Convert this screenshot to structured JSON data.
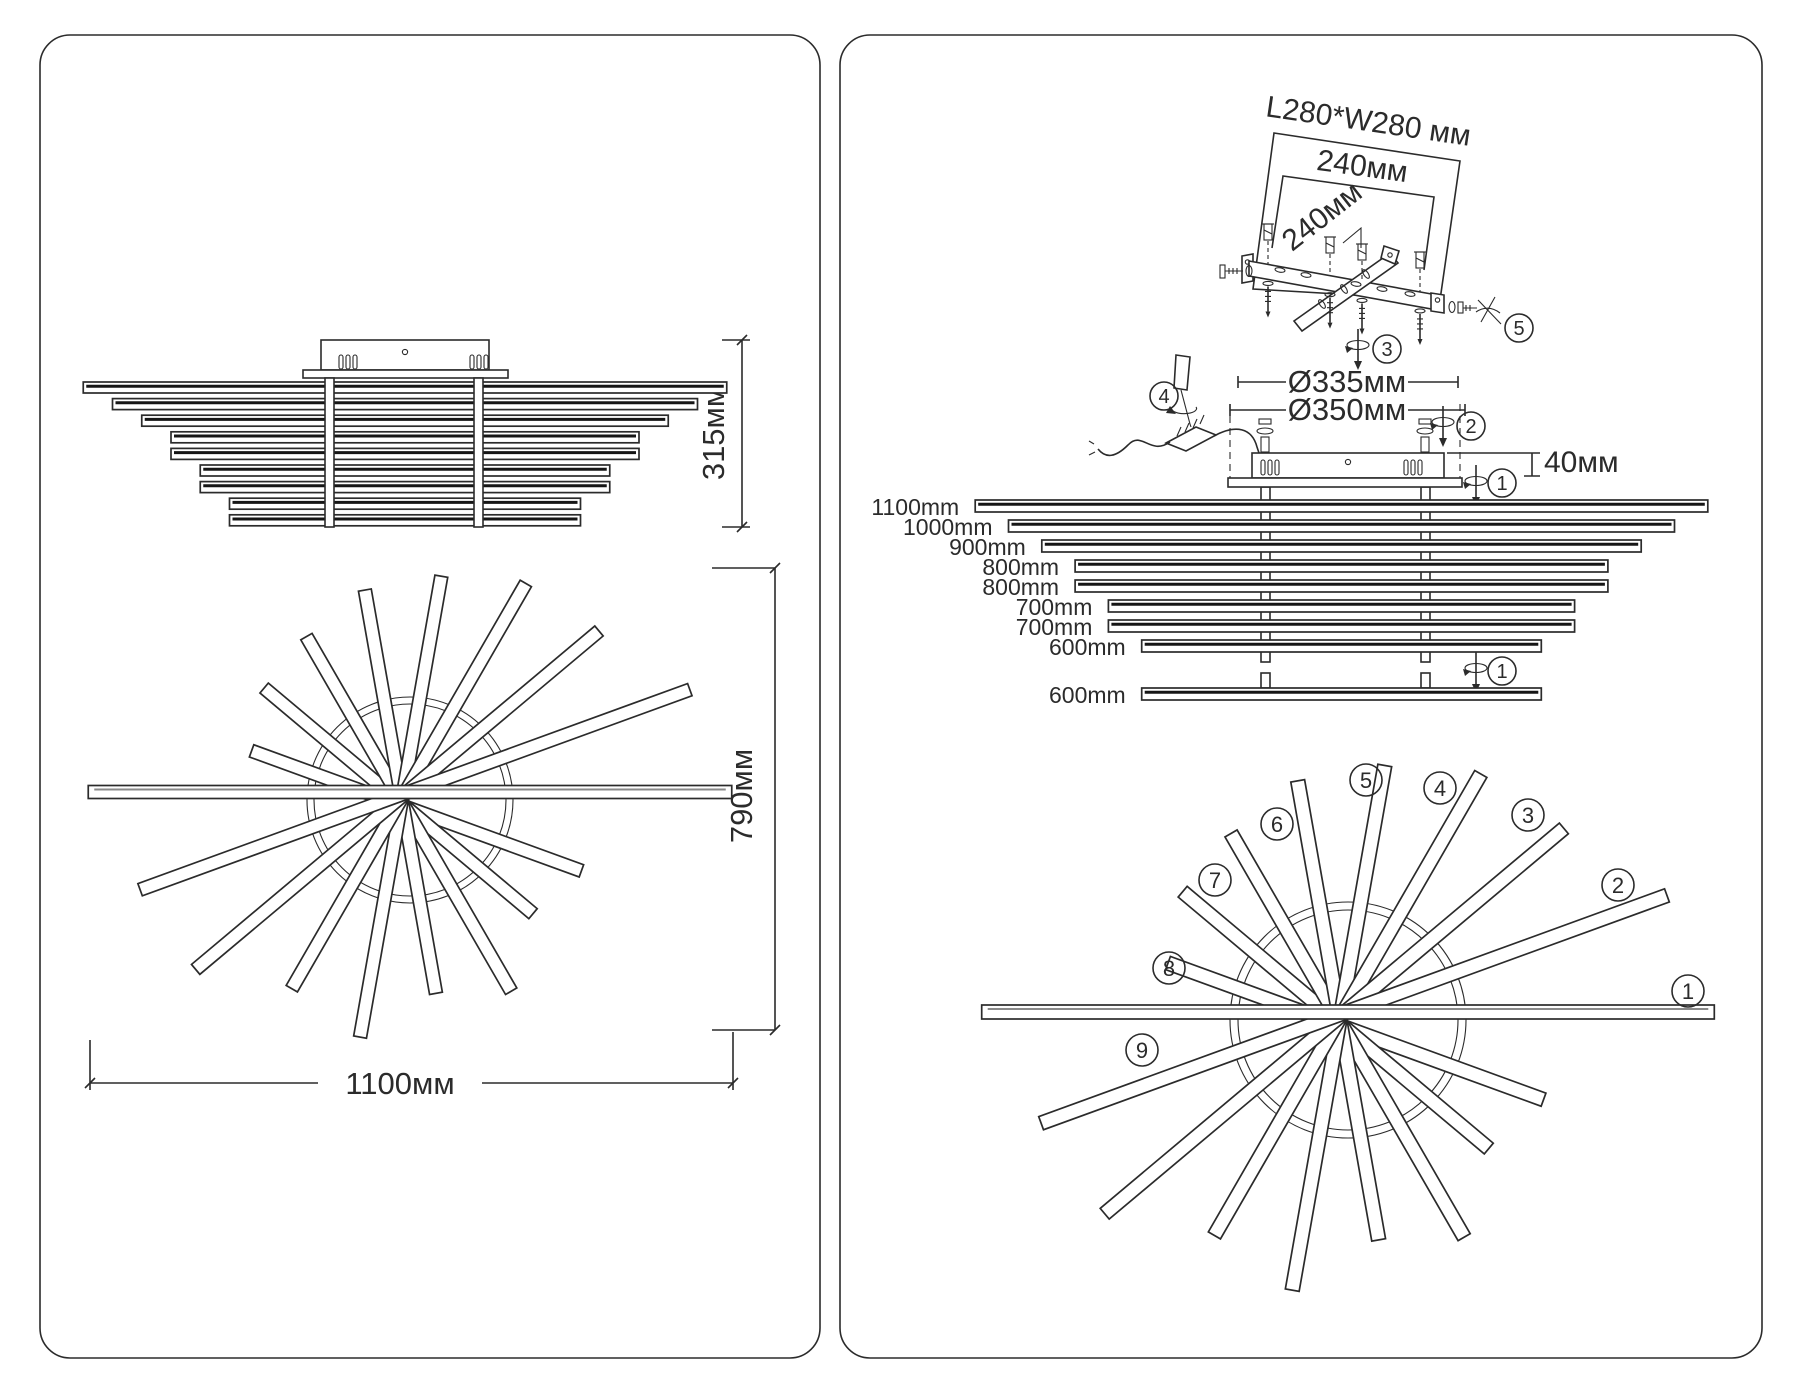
{
  "colors": {
    "line": "#2b2b2b",
    "background": "#ffffff"
  },
  "left_panel": {
    "side_view": {
      "dim_height": "315мм"
    },
    "top_view": {
      "dim_height": "790мм",
      "dim_width": "1100мм"
    }
  },
  "right_panel": {
    "mount_bracket": {
      "dim_plate": "L280*W280 мм",
      "dim_width": "240мм",
      "dim_diagonal": "240мм",
      "step_anchor_screws": "3",
      "step_wall_anchor": "5"
    },
    "canopy": {
      "dim_ring_inner": "Ø335мм",
      "dim_ring_outer": "Ø350мм",
      "dim_height": "40мм",
      "step_canopy_screw": "2",
      "step_wiring": "4",
      "step_bar_screw": "1"
    },
    "bars": {
      "stack": [
        {
          "label": "1100mm",
          "mm": 1100
        },
        {
          "label": "1000mm",
          "mm": 1000
        },
        {
          "label": "900mm",
          "mm": 900
        },
        {
          "label": "800mm",
          "mm": 800
        },
        {
          "label": "800mm",
          "mm": 800
        },
        {
          "label": "700mm",
          "mm": 700
        },
        {
          "label": "700mm",
          "mm": 700
        },
        {
          "label": "600mm",
          "mm": 600
        }
      ],
      "detached": {
        "label": "600mm",
        "mm": 600,
        "step": "1"
      }
    },
    "spokes": {
      "numbers": [
        "1",
        "2",
        "3",
        "4",
        "5",
        "6",
        "7",
        "8",
        "9"
      ],
      "lengths_mm": [
        1100,
        1000,
        900,
        800,
        800,
        700,
        700,
        600,
        600
      ]
    }
  }
}
